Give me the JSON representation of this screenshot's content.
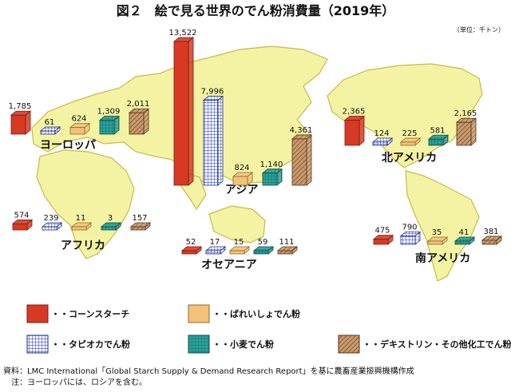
{
  "title": "図２　絵で見る世界のでん粉消費量（2019年）",
  "unit_note": "（単位：千トン）",
  "source": "資料：LMC International「Global Starch Supply & Demand Research Report」を基に農畜産業振興機構作成",
  "note": "注：ヨーロッパには、ロシアを含む。",
  "colors": {
    "corn": "#d63a23",
    "potato": "#f3c27a",
    "tapioca": "#3b4fcf",
    "wheat": "#2aa39a",
    "dextrin": "#b07a4e",
    "land": "#f4f3a3",
    "land_edge": "#c8b94a",
    "ocean": "#ffffff"
  },
  "chart_data": {
    "type": "bar",
    "title": "図２　絵で見る世界のでん粉消費量（2019年）",
    "unit": "千トン",
    "categories": [
      "コーンスターチ",
      "タピオカでん粉",
      "ばれいしょでん粉",
      "小麦でん粉",
      "デキストリン・その他化工でん粉"
    ],
    "series": [
      {
        "name": "ヨーロッパ",
        "values": [
          1785,
          61,
          624,
          1309,
          2011
        ]
      },
      {
        "name": "アジア",
        "values": [
          13522,
          7996,
          824,
          1140,
          4361
        ]
      },
      {
        "name": "北アメリカ",
        "values": [
          2365,
          124,
          225,
          581,
          2165
        ]
      },
      {
        "name": "アフリカ",
        "values": [
          574,
          239,
          11,
          3,
          157
        ]
      },
      {
        "name": "オセアニア",
        "values": [
          52,
          17,
          15,
          59,
          111
        ]
      },
      {
        "name": "南アメリカ",
        "values": [
          475,
          790,
          35,
          41,
          381
        ]
      }
    ],
    "legend": [
      {
        "key": "corn",
        "label": "・・コーンスターチ"
      },
      {
        "key": "potato",
        "label": "・・ばれいしょでん粉"
      },
      {
        "key": "tapioca",
        "label": "・・タピオカでん粉"
      },
      {
        "key": "wheat",
        "label": "・・小麦でん粉"
      },
      {
        "key": "dextrin",
        "label": "・・デキストリン・その他化工でん粉"
      }
    ],
    "legend_placement": "bottom"
  }
}
